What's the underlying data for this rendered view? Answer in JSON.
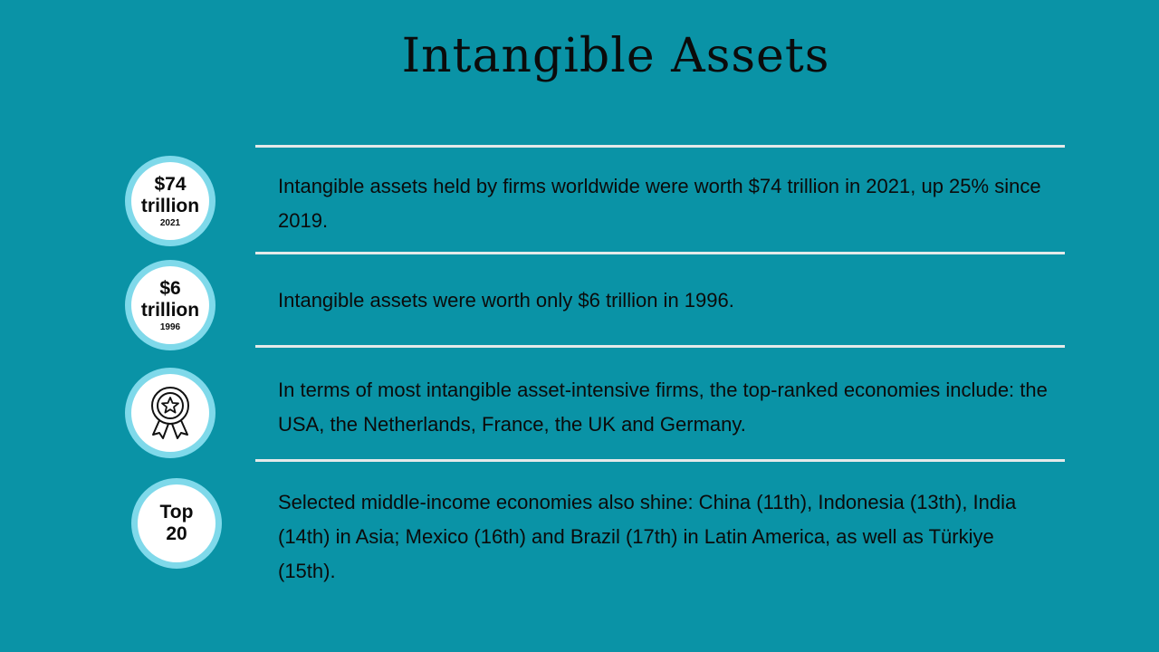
{
  "title": "Intangible Assets",
  "colors": {
    "background": "#0a93a6",
    "badge_ring": "#7fd9ea",
    "divider": "#e4e9e9"
  },
  "items": [
    {
      "badge": {
        "line1": "$74",
        "line2": "trillion",
        "sub": "2021"
      },
      "text": "Intangible assets held by firms worldwide were worth $74 trillion in 2021, up 25% since 2019."
    },
    {
      "badge": {
        "line1": "$6",
        "line2": "trillion",
        "sub": "1996"
      },
      "text": "Intangible assets were worth only $6 trillion in 1996."
    },
    {
      "badge": {
        "icon": "award-ribbon-star-icon"
      },
      "text": "In terms of most intangible asset-intensive firms, the top-ranked economies include: the USA, the Netherlands, France, the UK and Germany."
    },
    {
      "badge": {
        "line1": "Top",
        "line2": "20"
      },
      "text": "Selected middle-income economies also shine: China (11th), Indonesia (13th), India (14th) in Asia; Mexico (16th) and Brazil (17th) in Latin America, as well as Türkiye (15th)."
    }
  ]
}
